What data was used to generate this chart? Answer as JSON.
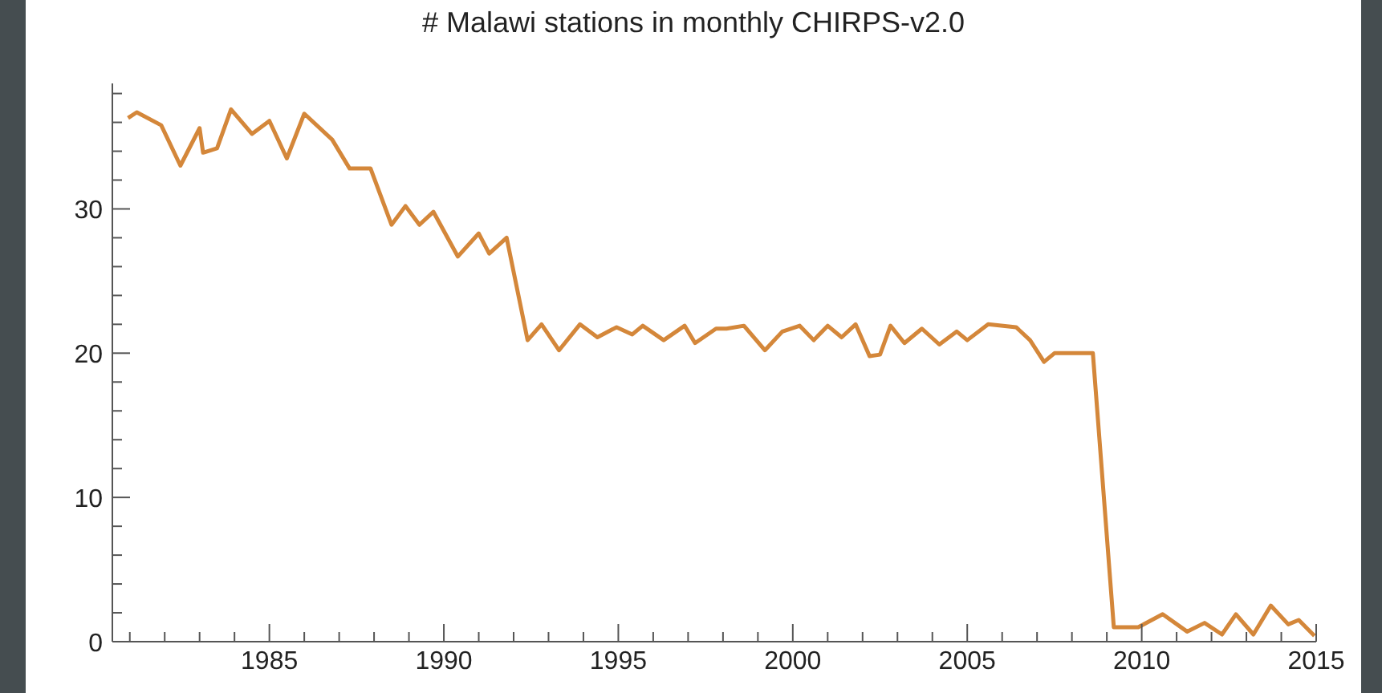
{
  "chart_data": {
    "type": "line",
    "title": "# Malawi stations in monthly CHIRPS-v2.0",
    "x": [
      1980.95,
      1981.2,
      1981.9,
      1982.45,
      1983.0,
      1983.1,
      1983.5,
      1983.9,
      1984.5,
      1985.0,
      1985.5,
      1986.0,
      1986.8,
      1987.3,
      1987.9,
      1988.5,
      1988.9,
      1989.3,
      1989.7,
      1990.4,
      1991.0,
      1991.3,
      1991.8,
      1992.4,
      1992.8,
      1993.3,
      1993.9,
      1994.4,
      1994.95,
      1995.4,
      1995.7,
      1996.3,
      1996.9,
      1997.2,
      1997.8,
      1998.1,
      1998.6,
      1999.2,
      1999.7,
      2000.2,
      2000.6,
      2001.0,
      2001.4,
      2001.8,
      2002.2,
      2002.5,
      2002.8,
      2003.2,
      2003.7,
      2004.2,
      2004.7,
      2005.0,
      2005.6,
      2006.4,
      2006.8,
      2007.2,
      2007.5,
      2008.4,
      2008.6,
      2009.2,
      2009.9,
      2010.6,
      2011.3,
      2011.8,
      2012.3,
      2012.7,
      2013.2,
      2013.7,
      2014.2,
      2014.5,
      2014.95
    ],
    "series": [
      {
        "color": "#d4873a",
        "values": [
          36.3,
          36.7,
          35.8,
          33,
          35.6,
          33.9,
          34.2,
          36.9,
          35.2,
          36.1,
          33.5,
          36.6,
          34.8,
          32.8,
          32.8,
          28.9,
          30.2,
          28.9,
          29.8,
          26.7,
          28.3,
          26.9,
          28,
          20.9,
          22,
          20.2,
          22,
          21.1,
          21.8,
          21.3,
          21.9,
          20.9,
          21.9,
          20.7,
          21.7,
          21.7,
          21.9,
          20.2,
          21.5,
          21.9,
          20.9,
          21.9,
          21.1,
          22,
          19.8,
          19.9,
          21.9,
          20.7,
          21.7,
          20.6,
          21.5,
          20.9,
          22,
          21.8,
          20.9,
          19.4,
          20,
          20,
          20,
          1,
          1,
          1.9,
          0.7,
          1.3,
          0.5,
          1.9,
          0.5,
          2.5,
          1.2,
          1.5,
          0.4
        ]
      }
    ],
    "xlim": [
      1980.5,
      2015
    ],
    "xticks": [
      {
        "value": 1981,
        "label": null
      },
      {
        "value": 1982,
        "label": null
      },
      {
        "value": 1983,
        "label": null
      },
      {
        "value": 1984,
        "label": null
      },
      1985,
      {
        "value": 1986,
        "label": null
      },
      {
        "value": 1987,
        "label": null
      },
      {
        "value": 1988,
        "label": null
      },
      {
        "value": 1989,
        "label": null
      },
      1990,
      {
        "value": 1991,
        "label": null
      },
      {
        "value": 1992,
        "label": null
      },
      {
        "value": 1993,
        "label": null
      },
      {
        "value": 1994,
        "label": null
      },
      1995,
      {
        "value": 1996,
        "label": null
      },
      {
        "value": 1997,
        "label": null
      },
      {
        "value": 1998,
        "label": null
      },
      {
        "value": 1999,
        "label": null
      },
      2000,
      {
        "value": 2001,
        "label": null
      },
      {
        "value": 2002,
        "label": null
      },
      {
        "value": 2003,
        "label": null
      },
      {
        "value": 2004,
        "label": null
      },
      2005,
      {
        "value": 2006,
        "label": null
      },
      {
        "value": 2007,
        "label": null
      },
      {
        "value": 2008,
        "label": null
      },
      {
        "value": 2009,
        "label": null
      },
      2010,
      {
        "value": 2011,
        "label": null
      },
      {
        "value": 2012,
        "label": null
      },
      {
        "value": 2013,
        "label": null
      },
      {
        "value": 2014,
        "label": null
      },
      2015
    ],
    "ylim": [
      0,
      38.7
    ],
    "yticks": [
      0,
      {
        "value": 2,
        "label": null
      },
      {
        "value": 4,
        "label": null
      },
      {
        "value": 6,
        "label": null
      },
      {
        "value": 8,
        "label": null
      },
      10,
      {
        "value": 12,
        "label": null
      },
      {
        "value": 14,
        "label": null
      },
      {
        "value": 16,
        "label": null
      },
      {
        "value": 18,
        "label": null
      },
      20,
      {
        "value": 22,
        "label": null
      },
      {
        "value": 24,
        "label": null
      },
      {
        "value": 26,
        "label": null
      },
      {
        "value": 28,
        "label": null
      },
      30,
      {
        "value": 32,
        "label": null
      },
      {
        "value": 34,
        "label": null
      },
      {
        "value": 36,
        "label": null
      },
      {
        "value": 38,
        "label": null
      }
    ],
    "grid": false,
    "legend": false,
    "marker": "none",
    "line_style": "solid"
  }
}
